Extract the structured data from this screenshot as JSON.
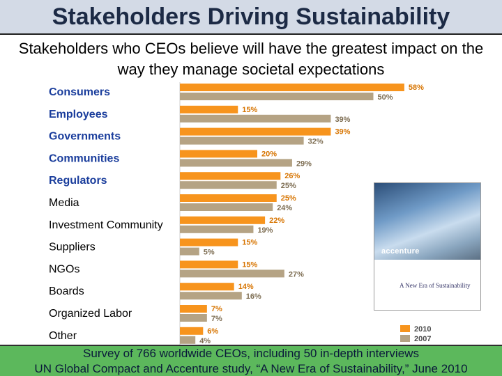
{
  "title": "Stakeholders Driving Sustainability",
  "subtitle": "Stakeholders who CEOs believe will have the greatest impact on the way they manage societal expectations",
  "colors": {
    "series_2010": "#f7941d",
    "series_2007": "#b5a384",
    "highlight_label": "#1a3d9c",
    "title_bg": "#d3dae6",
    "footer_bg": "#5cb85c"
  },
  "chart_data": {
    "type": "bar",
    "orientation": "horizontal",
    "categories": [
      "Consumers",
      "Employees",
      "Governments",
      "Communities",
      "Regulators",
      "Media",
      "Investment Community",
      "Suppliers",
      "NGOs",
      "Boards",
      "Organized Labor",
      "Other"
    ],
    "highlighted_categories": [
      "Consumers",
      "Employees",
      "Governments",
      "Communities",
      "Regulators"
    ],
    "series": [
      {
        "name": "2010",
        "values": [
          58,
          15,
          39,
          20,
          26,
          25,
          22,
          15,
          15,
          14,
          7,
          6
        ]
      },
      {
        "name": "2007",
        "values": [
          50,
          39,
          32,
          29,
          25,
          24,
          19,
          5,
          27,
          16,
          7,
          4
        ]
      }
    ],
    "value_suffix": "%",
    "legend": {
      "placement": "bottom-right",
      "entries": [
        "2010",
        "2007"
      ]
    },
    "xlim": [
      0,
      60
    ]
  },
  "cover": {
    "brand": "accenture",
    "title": "A New Era of Sustainability"
  },
  "footer": {
    "line1": "Survey of 766 worldwide CEOs, including 50 in-depth interviews",
    "line2": "UN Global Compact and Accenture study, “A New Era of Sustainability,” June 2010"
  }
}
